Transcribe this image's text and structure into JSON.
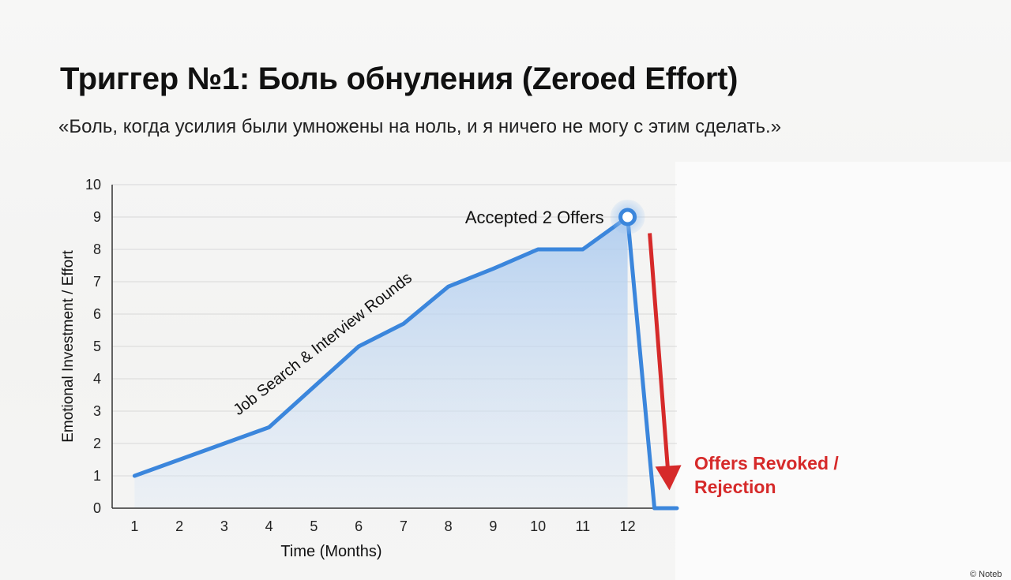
{
  "title": "Триггер №1: Боль обнуления (Zeroed Effort)",
  "subtitle": "«Боль, когда усилия были умножены на ноль, и я ничего не могу с этим сделать.»",
  "watermark": "© Noteb",
  "chart_data": {
    "type": "area",
    "xlabel": "Time (Months)",
    "ylabel": "Emotional Investment / Effort",
    "categories": [
      "1",
      "2",
      "3",
      "4",
      "5",
      "6",
      "7",
      "8",
      "9",
      "10",
      "11",
      "12"
    ],
    "x": [
      1,
      2,
      3,
      4,
      5,
      6,
      7,
      8,
      9,
      10,
      11,
      12
    ],
    "values": [
      1,
      1.5,
      2,
      2.5,
      3.75,
      5,
      5.7,
      6.85,
      7.4,
      8,
      8,
      9
    ],
    "drop": {
      "from_x": 12,
      "from_y": 9,
      "to_y": 0
    },
    "xlim": [
      0.5,
      13.1
    ],
    "ylim": [
      0,
      10
    ],
    "yticks": [
      0,
      1,
      2,
      3,
      4,
      5,
      6,
      7,
      8,
      9,
      10
    ],
    "grid": true,
    "colors": {
      "line": "#3b86dc",
      "fill": "#bcd6f3",
      "arrow": "#d62a2a",
      "grid": "#d8d8d8",
      "axis": "#333333"
    },
    "annotations": {
      "trend_label": "Job Search & Interview Rounds",
      "peak_label": "Accepted 2 Offers",
      "drop_label_line1": "Offers Revoked /",
      "drop_label_line2": "Rejection"
    }
  }
}
